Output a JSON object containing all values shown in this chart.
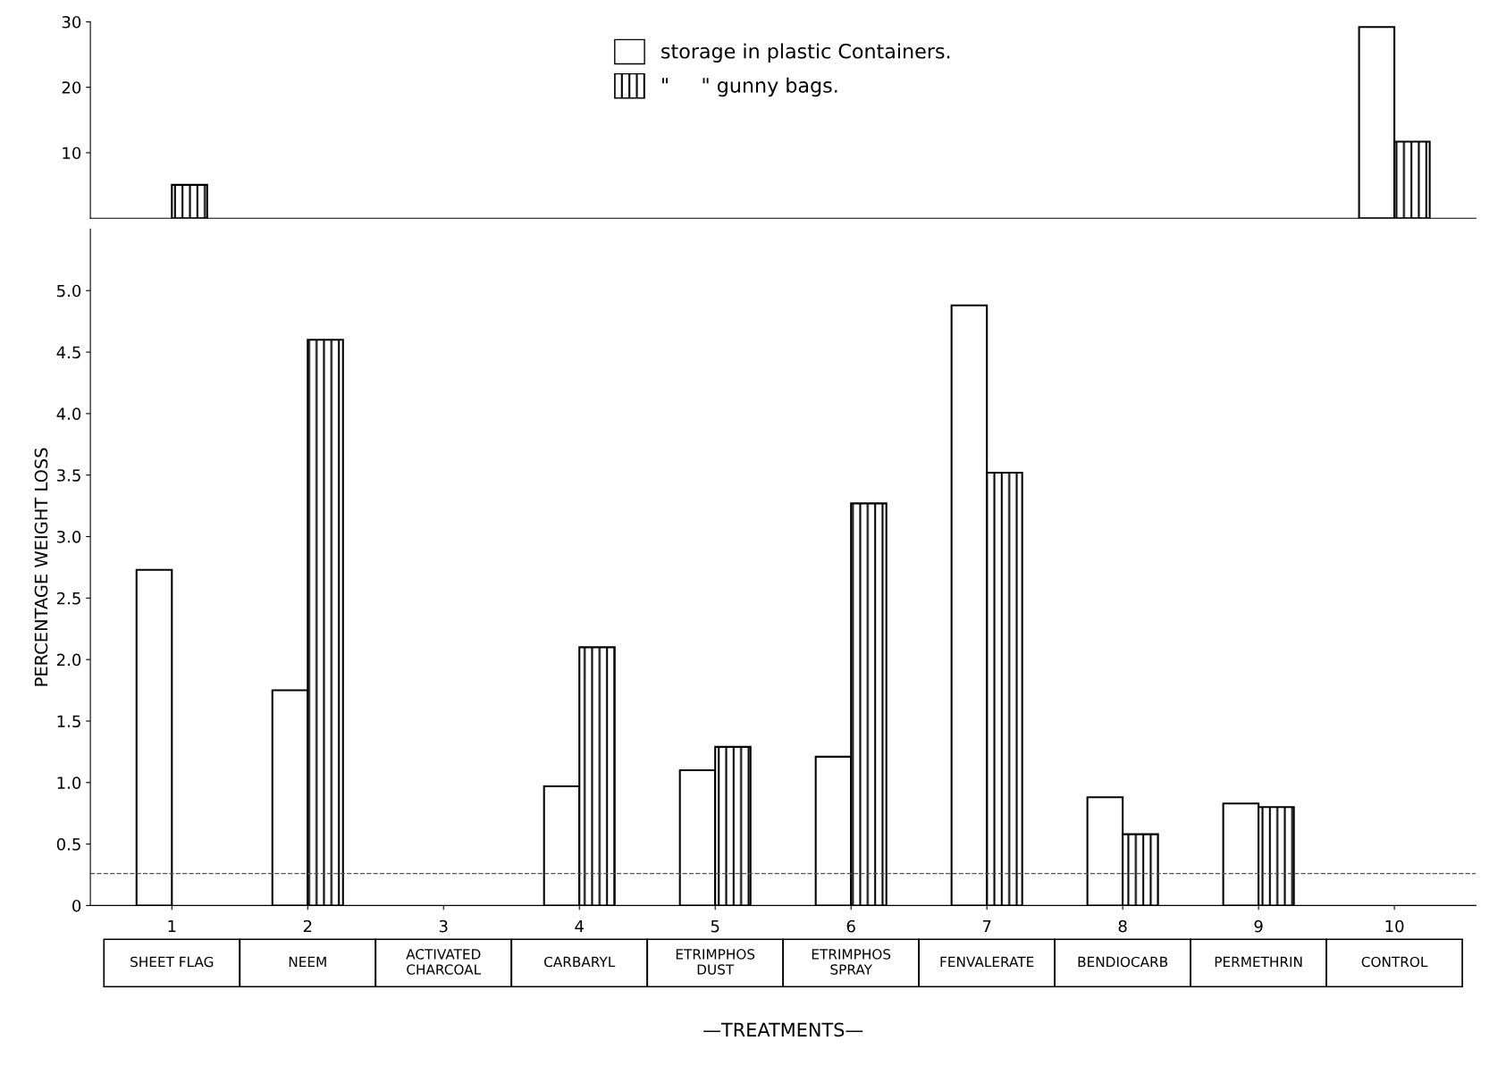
{
  "chart_data": [
    {
      "type": "bar",
      "categories": [
        "1",
        "2",
        "3",
        "4",
        "5",
        "6",
        "7",
        "8",
        "9",
        "10"
      ],
      "series": [
        {
          "name": "storage in plastic Containers.",
          "color": "#ffffff",
          "values": [
            null,
            null,
            null,
            null,
            null,
            null,
            null,
            null,
            null,
            29.2
          ]
        },
        {
          "name": "\"     \" gunny bags.",
          "color": "#000000",
          "values": [
            5.1,
            null,
            null,
            null,
            null,
            null,
            null,
            null,
            null,
            11.7
          ]
        }
      ],
      "ylim": [
        0,
        30
      ],
      "yticks": [
        10,
        20,
        30
      ],
      "tick_labels": "y",
      "legend": "top",
      "grid": false
    },
    {
      "type": "bar",
      "categories": [
        "1",
        "2",
        "3",
        "4",
        "5",
        "6",
        "7",
        "8",
        "9",
        "10"
      ],
      "series": [
        {
          "color": "#ffffff",
          "values": [
            2.73,
            1.75,
            null,
            0.97,
            1.1,
            1.21,
            4.88,
            0.88,
            0.83,
            null
          ]
        },
        {
          "color": "#000000",
          "values": [
            null,
            4.6,
            null,
            2.1,
            1.29,
            3.27,
            3.52,
            0.58,
            0.8,
            null
          ]
        }
      ],
      "ylim": [
        0,
        5.5
      ],
      "yticks": [
        0,
        0.5,
        {
          "value": 1,
          "label": "1.0"
        },
        1.5,
        {
          "value": 2,
          "label": "2.0"
        },
        2.5,
        {
          "value": 3,
          "label": "3.0"
        },
        3.5,
        {
          "value": 4,
          "label": "4.0"
        },
        4.5,
        {
          "value": 5,
          "label": "5.0"
        }
      ],
      "ylabel": "PERCENTAGE WEIGHT LOSS",
      "xlabel": "—TREATMENTS—",
      "ref_lines": [
        {
          "axis": "y",
          "value": 0.26,
          "line_style": "dashed",
          "color": "#555555"
        }
      ],
      "annotations": [
        "SHEET FLAG",
        "NEEM",
        "ACTIVATED\nCHARCOAL",
        "CARBARYL",
        "ETRIMPHOS\nDUST",
        "ETRIMPHOS\nSPRAY",
        "FENVALERATE",
        "BENDIOCARB",
        "PERMETHRIN",
        "CONTROL"
      ],
      "legend": false,
      "grid": false
    }
  ]
}
